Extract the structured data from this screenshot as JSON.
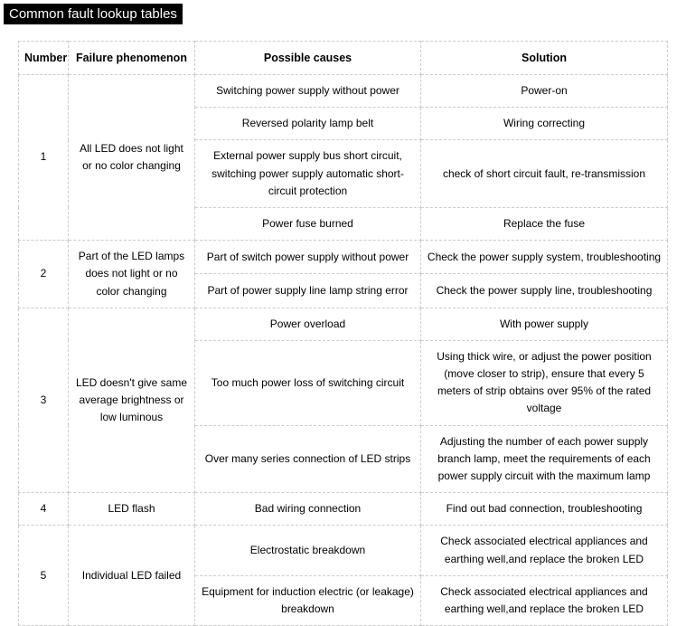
{
  "title": "Common fault lookup tables",
  "headers": {
    "number": "Number",
    "failure": "Failure phenomenon",
    "causes": "Possible causes",
    "solution": "Solution"
  },
  "rows": {
    "r1": {
      "num": "1",
      "failure": "All LED does not light or no color changing",
      "c1": "Switching power supply without power",
      "s1": "Power-on",
      "c2": "Reversed polarity lamp belt",
      "s2": "Wiring correcting",
      "c3": "External power supply bus short circuit, switching power supply automatic short-circuit protection",
      "s3": "check of short circuit fault, re-transmission",
      "c4": "Power fuse burned",
      "s4": "Replace the fuse"
    },
    "r2": {
      "num": "2",
      "failure": "Part of the LED lamps does not light or no color changing",
      "c1": "Part of switch power supply without power",
      "s1": "Check the power supply system, troubleshooting",
      "c2": "Part of power supply line lamp string error",
      "s2": "Check the power supply line, troubleshooting"
    },
    "r3": {
      "num": "3",
      "failure": "LED doesn't give same average brightness or low luminous",
      "c1": "Power overload",
      "s1": "With power supply",
      "c2": "Too much power loss of switching circuit",
      "s2": "Using thick wire, or adjust the power position (move closer to strip), ensure that every 5 meters of strip obtains over 95% of the rated voltage",
      "c3": "Over many series connection of LED strips",
      "s3": "Adjusting the number of each power supply branch lamp, meet the requirements of each power supply circuit with the maximum lamp"
    },
    "r4": {
      "num": "4",
      "failure": "LED flash",
      "c1": "Bad wiring connection",
      "s1": "Find out bad connection, troubleshooting"
    },
    "r5": {
      "num": "5",
      "failure": "Individual LED failed",
      "c1": "Electrostatic breakdown",
      "s1": "Check associated electrical appliances and earthing well,and replace the broken LED",
      "c2": "Equipment for induction electric (or leakage) breakdown",
      "s2": "Check associated electrical appliances and earthing well,and replace the broken LED"
    }
  }
}
